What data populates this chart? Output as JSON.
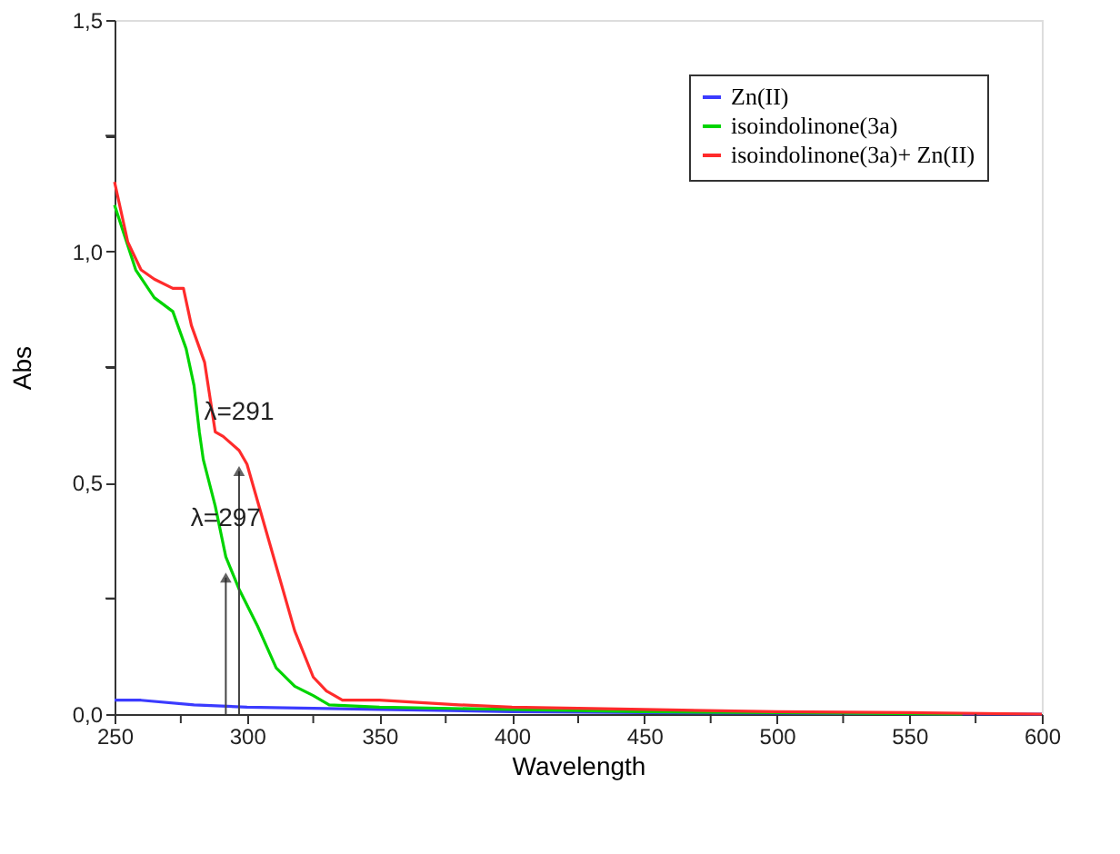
{
  "chart_data": {
    "type": "line",
    "xlabel": "Wavelength",
    "ylabel": "Abs",
    "xlim": [
      250,
      600
    ],
    "ylim": [
      0,
      1.5
    ],
    "xticks": [
      250,
      {
        "value": 275,
        "label": null
      },
      300,
      {
        "value": 325,
        "label": null
      },
      350,
      {
        "value": 375,
        "label": null
      },
      400,
      {
        "value": 425,
        "label": null
      },
      450,
      {
        "value": 475,
        "label": null
      },
      500,
      {
        "value": 525,
        "label": null
      },
      550,
      {
        "value": 575,
        "label": null
      },
      600
    ],
    "yticks": [
      {
        "value": 0,
        "label": "0,0"
      },
      {
        "value": 0.25,
        "label": null
      },
      {
        "value": 0.5,
        "label": "0,5"
      },
      {
        "value": 0.75,
        "label": null
      },
      {
        "value": 1.0,
        "label": "1,0"
      },
      {
        "value": 1.25,
        "label": null
      },
      {
        "value": 1.5,
        "label": "1,5"
      }
    ],
    "grid": false,
    "legend": "top right",
    "line_style": "solid",
    "marker": "none",
    "series": [
      {
        "name": "Zn(II)",
        "color": "#3b3bff",
        "x": [
          250,
          260,
          280,
          300,
          350,
          400,
          450,
          500,
          600
        ],
        "values": [
          0.03,
          0.03,
          0.02,
          0.015,
          0.01,
          0.005,
          0.003,
          0.002,
          0.0
        ]
      },
      {
        "name": "isoindolinone(3a)",
        "color": "#00d400",
        "x": [
          250,
          258,
          265,
          272,
          277,
          280,
          282,
          283.5,
          288,
          292,
          297,
          304,
          311,
          318,
          325,
          331,
          350,
          400,
          450,
          500,
          570
        ],
        "values": [
          1.1,
          0.96,
          0.9,
          0.87,
          0.79,
          0.71,
          0.61,
          0.55,
          0.45,
          0.34,
          0.27,
          0.19,
          0.1,
          0.06,
          0.04,
          0.02,
          0.015,
          0.01,
          0.005,
          0.003,
          0.0
        ]
      },
      {
        "name": "isoindolinone(3a)+ Zn(II)",
        "color": "#ff2b2b",
        "x": [
          250,
          255,
          260,
          265,
          272,
          276,
          279,
          284,
          288,
          291,
          297,
          300,
          304,
          311,
          318,
          325,
          330,
          336,
          350,
          380,
          400,
          450,
          500,
          550,
          600
        ],
        "values": [
          1.15,
          1.02,
          0.96,
          0.94,
          0.92,
          0.92,
          0.84,
          0.76,
          0.61,
          0.6,
          0.57,
          0.54,
          0.46,
          0.32,
          0.18,
          0.08,
          0.05,
          0.03,
          0.03,
          0.02,
          0.015,
          0.01,
          0.005,
          0.003,
          0.0
        ]
      }
    ],
    "annotations": [
      {
        "text": "λ=297",
        "x": 292,
        "y": 0.34
      },
      {
        "text": "λ=291",
        "x": 297,
        "y": 0.57
      }
    ]
  }
}
